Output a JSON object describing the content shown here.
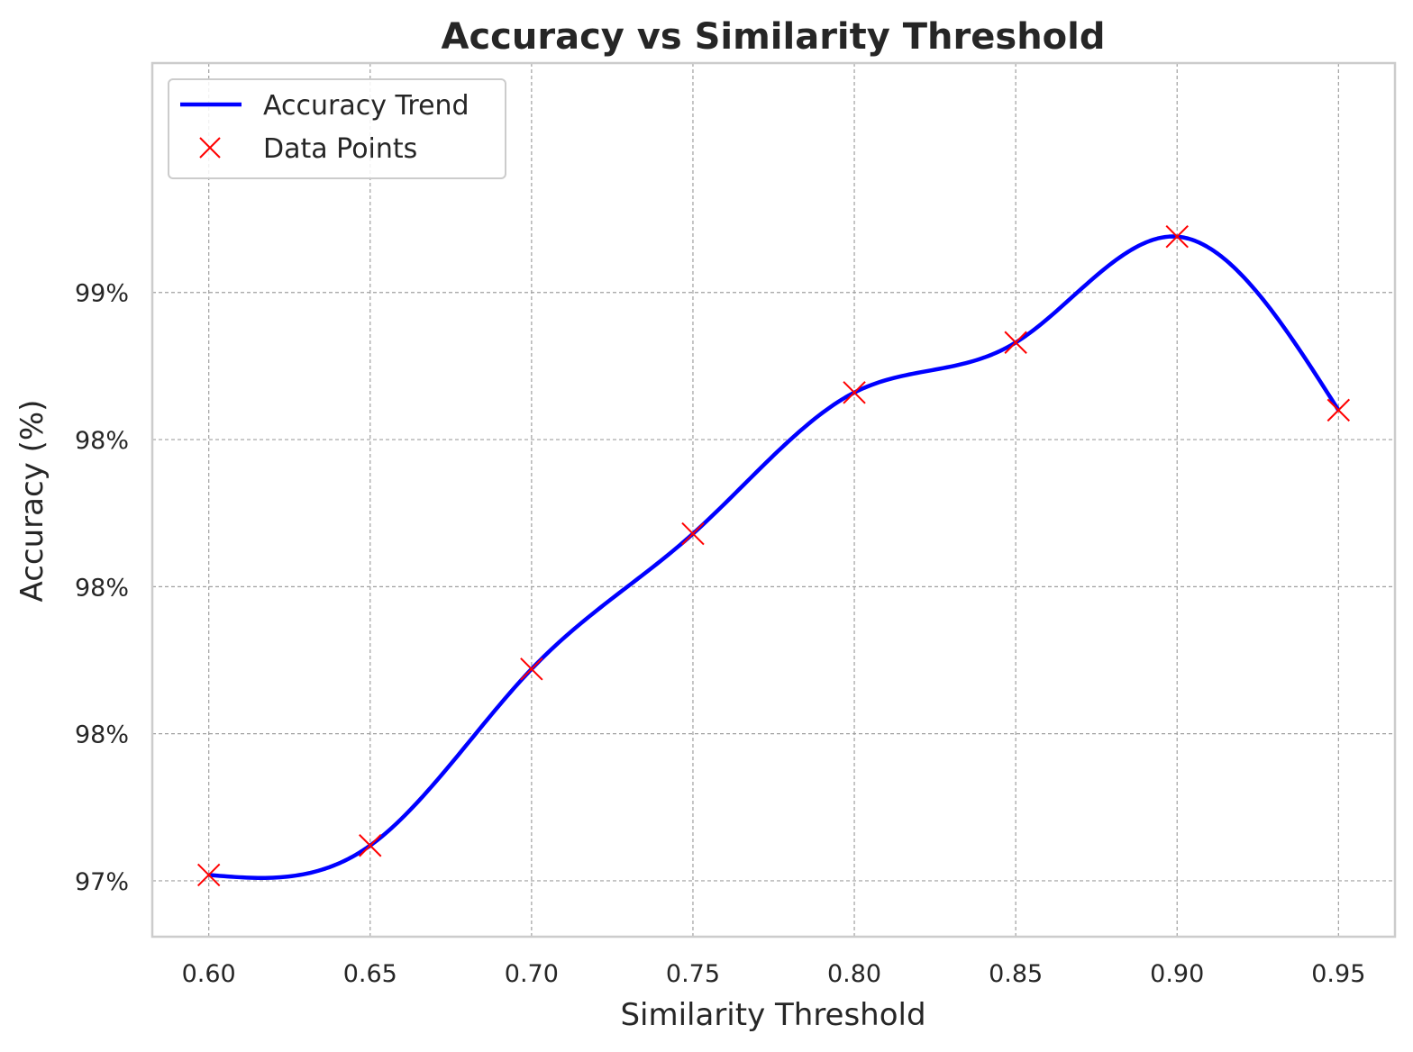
{
  "chart_data": {
    "type": "line",
    "title": "Accuracy vs Similarity Threshold",
    "xlabel": "Similarity Threshold",
    "ylabel": "Accuracy (%)",
    "x_ticks": [
      "0.60",
      "0.65",
      "0.70",
      "0.75",
      "0.80",
      "0.85",
      "0.90",
      "0.95"
    ],
    "x_tick_values": [
      0.6,
      0.65,
      0.7,
      0.75,
      0.8,
      0.85,
      0.9,
      0.95
    ],
    "y_ticks": [
      "97%",
      "98%",
      "98%",
      "98%",
      "99%"
    ],
    "y_tick_values": [
      97.0,
      97.5,
      98.0,
      98.5,
      99.0
    ],
    "xlim": [
      0.5825,
      0.9675
    ],
    "ylim": [
      96.81,
      99.78
    ],
    "grid": true,
    "legend_position": "top-left",
    "series": [
      {
        "name": "Accuracy Trend",
        "kind": "line",
        "color": "#0000ff",
        "x": [
          0.6,
          0.65,
          0.7,
          0.75,
          0.8,
          0.85,
          0.9,
          0.95
        ],
        "y": [
          97.02,
          97.12,
          97.72,
          98.18,
          98.66,
          98.83,
          99.19,
          98.6
        ]
      },
      {
        "name": "Data Points",
        "kind": "scatter",
        "marker": "x",
        "color": "#ff0000",
        "x": [
          0.6,
          0.65,
          0.7,
          0.75,
          0.8,
          0.85,
          0.9,
          0.95
        ],
        "y": [
          97.02,
          97.12,
          97.72,
          98.18,
          98.66,
          98.83,
          99.19,
          98.6
        ]
      }
    ]
  }
}
